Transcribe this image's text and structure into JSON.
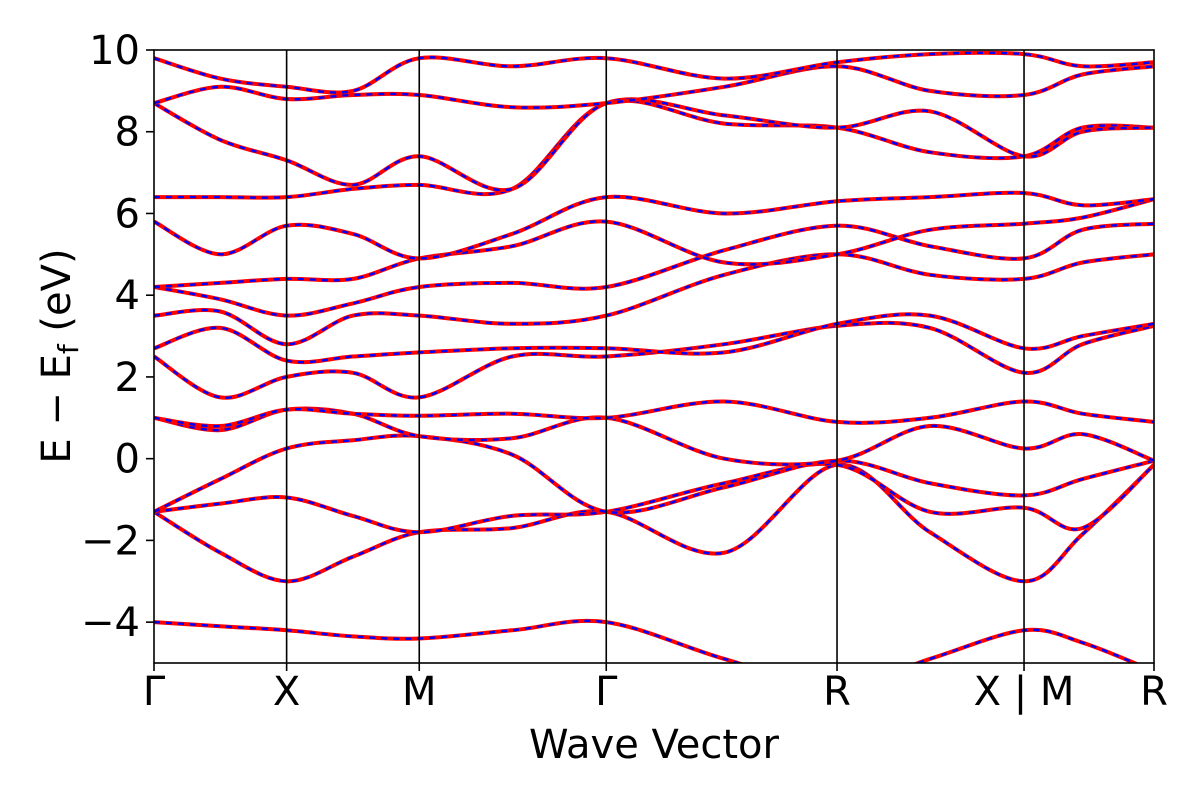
{
  "chart_data": {
    "type": "line",
    "xlabel": "Wave Vector",
    "ylabel_main": "E − E",
    "ylabel_sub": "f",
    "ylabel_unit": " (eV)",
    "ylim": [
      -5,
      10
    ],
    "yticks": [
      -4,
      -2,
      0,
      2,
      4,
      6,
      8,
      10
    ],
    "ytick_labels": [
      "−4",
      "−2",
      "0",
      "2",
      "4",
      "6",
      "8",
      "10"
    ],
    "xlim": [
      0,
      7.54
    ],
    "kpoints": [
      {
        "label": "Γ",
        "x": 0
      },
      {
        "label": "X",
        "x": 1.0
      },
      {
        "label": "M",
        "x": 2.0
      },
      {
        "label": "Γ",
        "x": 3.41
      },
      {
        "label": "R",
        "x": 5.15
      },
      {
        "label": "X | M",
        "x": 6.56
      },
      {
        "label": "R",
        "x": 7.54
      }
    ],
    "grid": false,
    "legend": "none",
    "series_style": [
      {
        "color": "#ff0000",
        "dash": "solid"
      },
      {
        "color": "#0000ff",
        "dash": "dashed"
      }
    ],
    "bands": [
      {
        "x": [
          0,
          0.5,
          1.0,
          1.5,
          2.0,
          2.7,
          3.41,
          4.3,
          5.15,
          5.85,
          6.56,
          7.0,
          7.54
        ],
        "y": [
          -4.0,
          -4.1,
          -4.2,
          -4.35,
          -4.4,
          -4.2,
          -4.0,
          -4.9,
          -5.6,
          -4.9,
          -4.2,
          -4.5,
          -5.2
        ]
      },
      {
        "x": [
          0,
          0.5,
          1.0,
          1.5,
          2.0,
          2.7,
          3.41,
          4.3,
          5.15,
          5.85,
          6.56,
          7.0,
          7.54
        ],
        "y": [
          -1.3,
          -2.3,
          -3.0,
          -2.4,
          -1.8,
          -1.7,
          -1.3,
          -2.3,
          -0.15,
          -1.8,
          -3.0,
          -1.85,
          -0.15
        ]
      },
      {
        "x": [
          0,
          0.5,
          1.0,
          1.5,
          2.0,
          2.7,
          3.41,
          4.3,
          5.15,
          5.85,
          6.56,
          7.0,
          7.54
        ],
        "y": [
          -1.3,
          -1.1,
          -0.95,
          -1.4,
          -1.8,
          -1.4,
          -1.3,
          -0.6,
          -0.15,
          -1.3,
          -1.2,
          -1.7,
          -0.15
        ]
      },
      {
        "x": [
          0,
          0.5,
          1.0,
          1.5,
          2.0,
          2.7,
          3.41,
          4.3,
          5.15,
          5.85,
          6.56,
          7.0,
          7.54
        ],
        "y": [
          -1.3,
          -0.5,
          0.25,
          0.45,
          0.55,
          0.1,
          -1.3,
          -0.7,
          -0.05,
          -0.6,
          -0.9,
          -0.5,
          -0.05
        ]
      },
      {
        "x": [
          0,
          0.5,
          1.0,
          1.5,
          2.0,
          2.7,
          3.41,
          4.3,
          5.15,
          5.85,
          6.56,
          7.0,
          7.54
        ],
        "y": [
          1.0,
          0.7,
          1.2,
          1.1,
          0.55,
          0.5,
          1.0,
          0.0,
          -0.05,
          0.8,
          0.25,
          0.6,
          -0.05
        ]
      },
      {
        "x": [
          0,
          0.5,
          1.0,
          1.5,
          2.0,
          2.7,
          3.41,
          4.3,
          5.15,
          5.85,
          6.56,
          7.0,
          7.54
        ],
        "y": [
          1.0,
          0.8,
          1.2,
          1.1,
          1.05,
          1.1,
          1.0,
          1.4,
          0.9,
          1.0,
          1.4,
          1.1,
          0.9
        ]
      },
      {
        "x": [
          0,
          0.5,
          1.0,
          1.5,
          2.0,
          2.7,
          3.41,
          4.3,
          5.15,
          5.85,
          6.56,
          7.0,
          7.54
        ],
        "y": [
          2.5,
          1.5,
          2.0,
          2.1,
          1.5,
          2.5,
          2.5,
          2.8,
          3.25,
          3.2,
          2.1,
          2.8,
          3.25
        ]
      },
      {
        "x": [
          0,
          0.5,
          1.0,
          1.5,
          2.0,
          2.7,
          3.41,
          4.3,
          5.15,
          5.85,
          6.56,
          7.0,
          7.54
        ],
        "y": [
          2.7,
          3.2,
          2.4,
          2.5,
          2.6,
          2.7,
          2.7,
          2.6,
          3.3,
          3.5,
          2.7,
          3.0,
          3.3
        ]
      },
      {
        "x": [
          0,
          0.5,
          1.0,
          1.5,
          2.0,
          2.7,
          3.41,
          4.3,
          5.15,
          5.85,
          6.56,
          7.0,
          7.54
        ],
        "y": [
          3.5,
          3.6,
          2.8,
          3.5,
          3.5,
          3.3,
          3.5,
          4.5,
          5.0,
          4.5,
          4.4,
          4.8,
          5.0
        ]
      },
      {
        "x": [
          0,
          0.5,
          1.0,
          1.5,
          2.0,
          2.7,
          3.41,
          4.3,
          5.15,
          5.85,
          6.56,
          7.0,
          7.54
        ],
        "y": [
          4.2,
          3.9,
          3.5,
          3.8,
          4.2,
          4.3,
          4.2,
          5.1,
          5.7,
          5.2,
          4.9,
          5.6,
          5.75
        ]
      },
      {
        "x": [
          0,
          0.5,
          1.0,
          1.5,
          2.0,
          2.7,
          3.41,
          4.3,
          5.15,
          5.85,
          6.56,
          7.0,
          7.54
        ],
        "y": [
          4.2,
          4.3,
          4.4,
          4.4,
          4.9,
          5.2,
          5.8,
          4.8,
          5.0,
          5.6,
          5.75,
          5.9,
          6.35
        ]
      },
      {
        "x": [
          0,
          0.5,
          1.0,
          1.5,
          2.0,
          2.7,
          3.41,
          4.3,
          5.15,
          5.85,
          6.56,
          7.0,
          7.54
        ],
        "y": [
          5.8,
          5.0,
          5.7,
          5.5,
          4.9,
          5.5,
          6.4,
          6.0,
          6.3,
          6.4,
          6.5,
          6.2,
          6.35
        ]
      },
      {
        "x": [
          0,
          0.5,
          1.0,
          1.5,
          2.0,
          2.7,
          3.41,
          4.3,
          5.15,
          5.85,
          6.56,
          7.0,
          7.54
        ],
        "y": [
          6.4,
          6.4,
          6.4,
          6.6,
          6.7,
          6.6,
          8.7,
          8.2,
          8.1,
          7.5,
          7.4,
          8.1,
          8.1
        ]
      },
      {
        "x": [
          0,
          0.5,
          1.0,
          1.5,
          2.0,
          2.7,
          3.41,
          4.3,
          5.15,
          5.85,
          6.56,
          7.0,
          7.54
        ],
        "y": [
          8.7,
          7.8,
          7.3,
          6.7,
          7.4,
          6.6,
          8.7,
          8.4,
          8.1,
          8.5,
          7.4,
          8.0,
          8.1
        ]
      },
      {
        "x": [
          0,
          0.5,
          1.0,
          1.5,
          2.0,
          2.7,
          3.41,
          4.3,
          5.15,
          5.85,
          6.56,
          7.0,
          7.54
        ],
        "y": [
          8.7,
          9.1,
          8.8,
          8.9,
          8.9,
          8.6,
          8.7,
          9.1,
          9.6,
          9.0,
          8.9,
          9.4,
          9.6
        ]
      },
      {
        "x": [
          0,
          0.5,
          1.0,
          1.5,
          2.0,
          2.7,
          3.41,
          4.3,
          5.15,
          5.85,
          6.56,
          7.0,
          7.54
        ],
        "y": [
          9.8,
          9.3,
          9.1,
          9.0,
          9.8,
          9.6,
          9.8,
          9.3,
          9.7,
          9.9,
          9.9,
          9.6,
          9.7
        ]
      }
    ]
  }
}
